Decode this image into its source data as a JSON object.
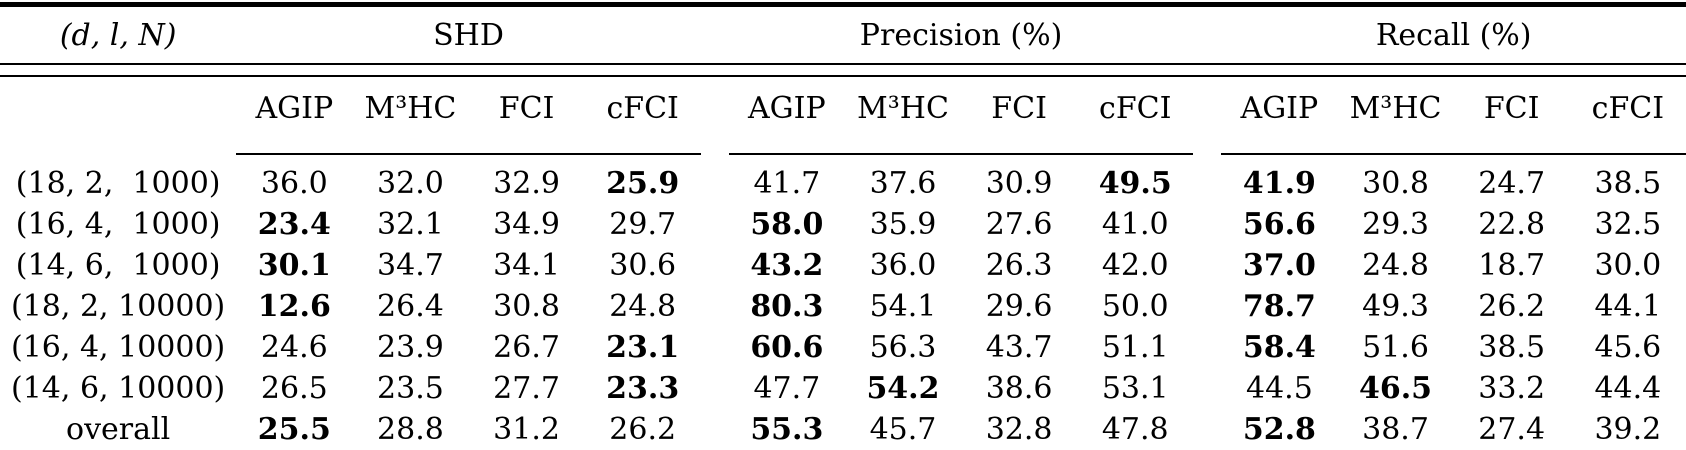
{
  "header": {
    "row_label": "(d, l, N)",
    "groups": [
      {
        "label": "SHD",
        "methods": [
          "AGIP",
          "M³HC",
          "FCI",
          "cFCI"
        ]
      },
      {
        "label": "Precision (%)",
        "methods": [
          "AGIP",
          "M³HC",
          "FCI",
          "cFCI"
        ]
      },
      {
        "label": "Recall (%)",
        "methods": [
          "AGIP",
          "M³HC",
          "FCI",
          "cFCI"
        ]
      }
    ]
  },
  "rows": [
    {
      "label": "(18, 2,  1000)",
      "values": [
        "36.0",
        "32.0",
        "32.9",
        "25.9",
        "41.7",
        "37.6",
        "30.9",
        "49.5",
        "41.9",
        "30.8",
        "24.7",
        "38.5"
      ],
      "bold": [
        3,
        7,
        8
      ]
    },
    {
      "label": "(16, 4,  1000)",
      "values": [
        "23.4",
        "32.1",
        "34.9",
        "29.7",
        "58.0",
        "35.9",
        "27.6",
        "41.0",
        "56.6",
        "29.3",
        "22.8",
        "32.5"
      ],
      "bold": [
        0,
        4,
        8
      ]
    },
    {
      "label": "(14, 6,  1000)",
      "values": [
        "30.1",
        "34.7",
        "34.1",
        "30.6",
        "43.2",
        "36.0",
        "26.3",
        "42.0",
        "37.0",
        "24.8",
        "18.7",
        "30.0"
      ],
      "bold": [
        0,
        4,
        8
      ]
    },
    {
      "label": "(18, 2, 10000)",
      "values": [
        "12.6",
        "26.4",
        "30.8",
        "24.8",
        "80.3",
        "54.1",
        "29.6",
        "50.0",
        "78.7",
        "49.3",
        "26.2",
        "44.1"
      ],
      "bold": [
        0,
        4,
        8
      ]
    },
    {
      "label": "(16, 4, 10000)",
      "values": [
        "24.6",
        "23.9",
        "26.7",
        "23.1",
        "60.6",
        "56.3",
        "43.7",
        "51.1",
        "58.4",
        "51.6",
        "38.5",
        "45.6"
      ],
      "bold": [
        3,
        4,
        8
      ]
    },
    {
      "label": "(14, 6, 10000)",
      "values": [
        "26.5",
        "23.5",
        "27.7",
        "23.3",
        "47.7",
        "54.2",
        "38.6",
        "53.1",
        "44.5",
        "46.5",
        "33.2",
        "44.4"
      ],
      "bold": [
        3,
        5,
        9
      ]
    },
    {
      "label": "overall",
      "values": [
        "25.5",
        "28.8",
        "31.2",
        "26.2",
        "55.3",
        "45.7",
        "32.8",
        "47.8",
        "52.8",
        "38.7",
        "27.4",
        "39.2"
      ],
      "bold": [
        0,
        4,
        8
      ]
    }
  ]
}
